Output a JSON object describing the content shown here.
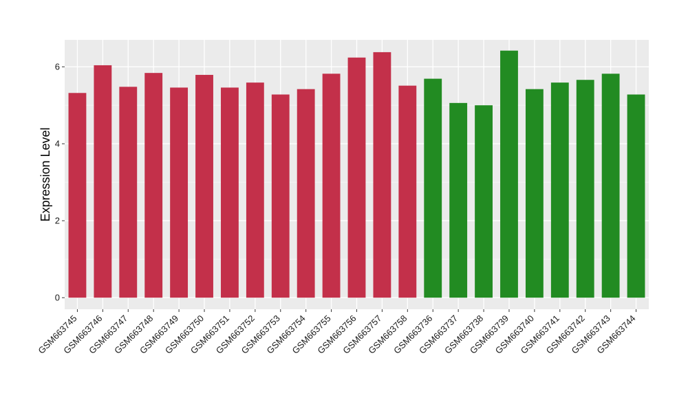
{
  "chart_data": {
    "type": "bar",
    "title": "",
    "xlabel": "",
    "ylabel": "Expression Level",
    "ylim": [
      -0.3,
      6.7
    ],
    "yticks": [
      0,
      2,
      4,
      6
    ],
    "grid": true,
    "legend": "none",
    "categories": [
      "GSM663745",
      "GSM663746",
      "GSM663747",
      "GSM663748",
      "GSM663749",
      "GSM663750",
      "GSM663751",
      "GSM663752",
      "GSM663753",
      "GSM663754",
      "GSM663755",
      "GSM663756",
      "GSM663757",
      "GSM663758",
      "GSM663736",
      "GSM663737",
      "GSM663738",
      "GSM663739",
      "GSM663740",
      "GSM663741",
      "GSM663742",
      "GSM663743",
      "GSM663744"
    ],
    "values": [
      5.32,
      6.04,
      5.48,
      5.84,
      5.46,
      5.79,
      5.46,
      5.59,
      5.28,
      5.42,
      5.82,
      6.24,
      6.38,
      5.51,
      5.69,
      5.06,
      5.0,
      6.42,
      5.42,
      5.59,
      5.66,
      5.82,
      5.28
    ],
    "groups": [
      "a",
      "a",
      "a",
      "a",
      "a",
      "a",
      "a",
      "a",
      "a",
      "a",
      "a",
      "a",
      "a",
      "a",
      "b",
      "b",
      "b",
      "b",
      "b",
      "b",
      "b",
      "b",
      "b"
    ],
    "colors": {
      "a": "#c3304a",
      "b": "#228b22",
      "panel": "#ebebeb",
      "grid_major": "#ffffff",
      "axis_text": "#1a1a1a"
    }
  }
}
